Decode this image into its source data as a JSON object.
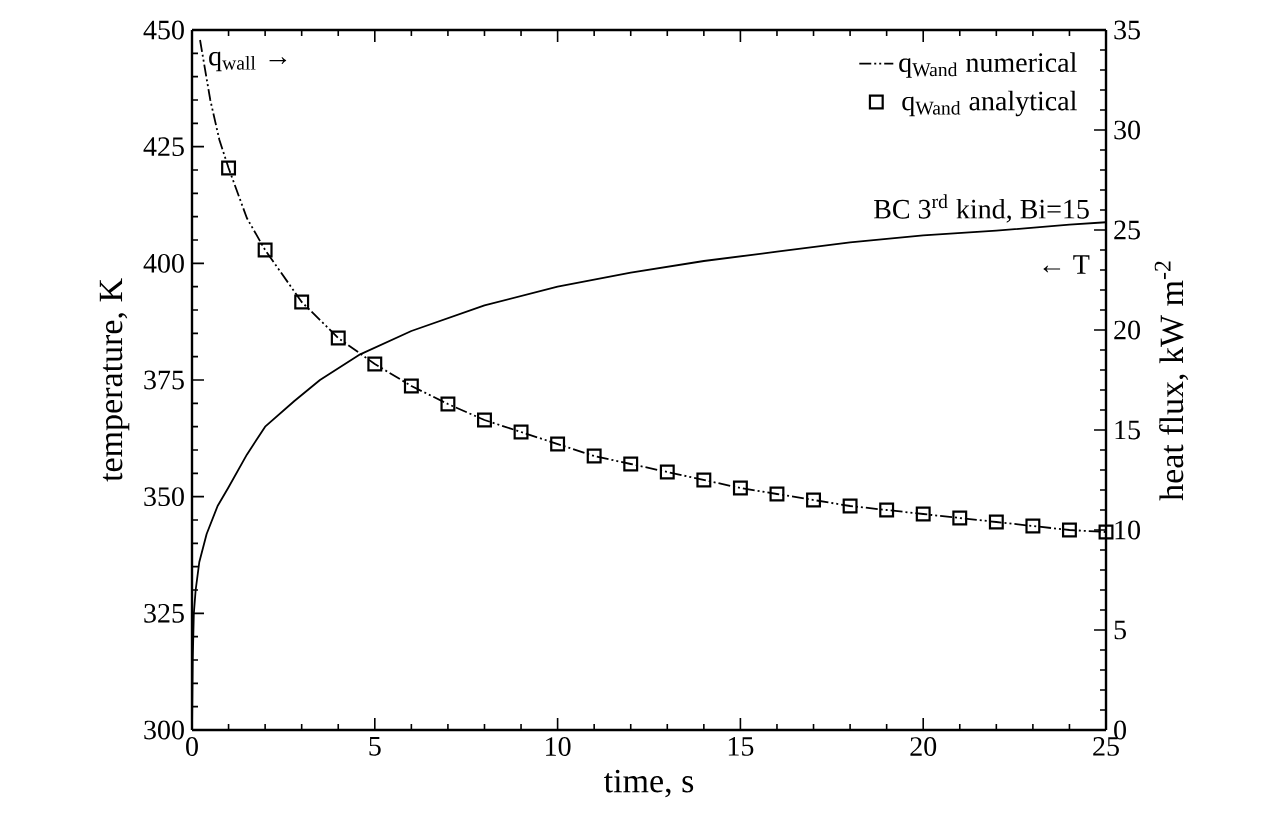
{
  "chart_data": {
    "type": "line",
    "xlabel": "time, s",
    "ylabel": "temperature, K",
    "y2label": "heat flux, kW m$^{-2}$",
    "xlim": [
      0,
      25
    ],
    "xticks": [
      0,
      5,
      10,
      15,
      20,
      25
    ],
    "ylim": [
      300,
      450
    ],
    "yticks": [
      300,
      325,
      350,
      375,
      400,
      425,
      450
    ],
    "y2lim": [
      0,
      35
    ],
    "y2ticks": [
      0,
      5,
      10,
      15,
      20,
      25,
      30,
      35
    ],
    "grid": false,
    "legend": "top right",
    "annotations": [
      "q$_{wall}$ →",
      "BC 3$^{rd}$ kind, Bi=15",
      "← T"
    ],
    "series": [
      {
        "axis": "y",
        "color": "#000000",
        "line_style": "solid",
        "marker": "none",
        "x": [
          0,
          0.02,
          0.05,
          0.1,
          0.2,
          0.4,
          0.7,
          1,
          1.5,
          2,
          2.8,
          3.5,
          4.6,
          6,
          8,
          10,
          12,
          14,
          16,
          18,
          20,
          22,
          24,
          25
        ],
        "values": [
          300,
          315,
          325,
          330,
          336,
          342,
          348,
          352,
          359,
          365,
          370.5,
          375,
          380.5,
          385.5,
          391,
          395,
          398,
          400.5,
          402.5,
          404.5,
          406,
          407,
          408.3,
          408.8
        ]
      },
      {
        "axis": "y2",
        "name": "q$_{Wand}$ numerical",
        "color": "#000000",
        "line_style": "dashdotdotted",
        "marker": "none",
        "x": [
          0.22,
          0.5,
          0.75,
          1,
          1.5,
          2,
          3,
          4,
          5,
          6,
          7,
          8,
          9,
          10,
          11,
          12,
          13,
          14,
          15,
          16,
          17,
          18,
          19,
          20,
          21,
          22,
          23,
          24,
          25
        ],
        "values": [
          34.5,
          31.5,
          29.5,
          28.1,
          25.6,
          24.0,
          21.4,
          19.6,
          18.3,
          17.2,
          16.3,
          15.5,
          14.9,
          14.3,
          13.7,
          13.3,
          12.9,
          12.5,
          12.1,
          11.8,
          11.5,
          11.2,
          11.0,
          10.8,
          10.6,
          10.4,
          10.2,
          10.0,
          9.9
        ]
      },
      {
        "type": "scatter",
        "axis": "y2",
        "name": "q$_{Wand}$ analytical",
        "color": "#000000",
        "marker": "square",
        "x": [
          1,
          2,
          3,
          4,
          5,
          6,
          7,
          8,
          9,
          10,
          11,
          12,
          13,
          14,
          15,
          16,
          17,
          18,
          19,
          20,
          21,
          22,
          23,
          24,
          25
        ],
        "values": [
          28.1,
          24.0,
          21.4,
          19.6,
          18.3,
          17.2,
          16.3,
          15.5,
          14.9,
          14.3,
          13.7,
          13.3,
          12.9,
          12.5,
          12.1,
          11.8,
          11.5,
          11.2,
          11.0,
          10.8,
          10.6,
          10.4,
          10.2,
          10.0,
          9.9
        ]
      }
    ]
  }
}
